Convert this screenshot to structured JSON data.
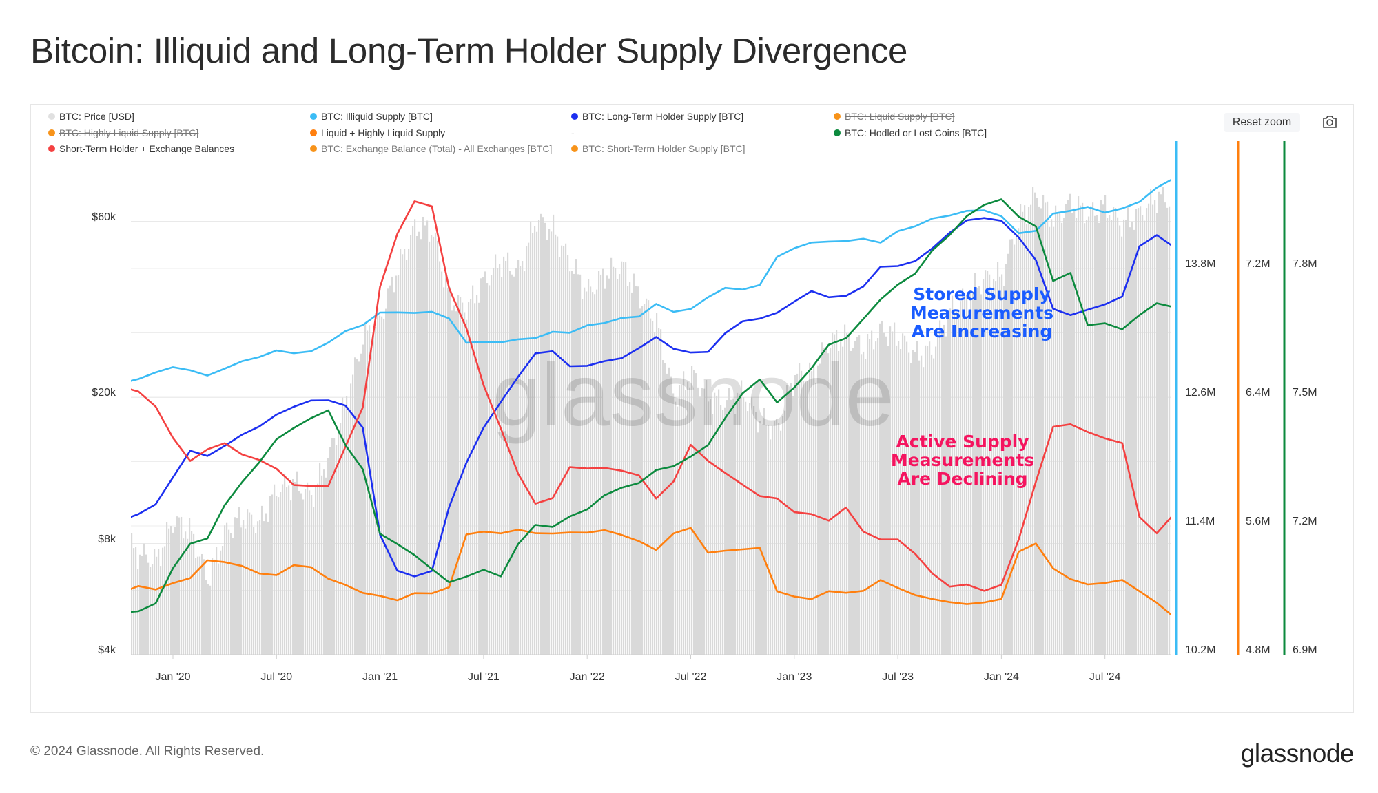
{
  "title": "Bitcoin: Illiquid and Long-Term Holder Supply Divergence",
  "controls": {
    "reset_zoom": "Reset zoom",
    "camera_icon": "camera-icon"
  },
  "legend": [
    {
      "label": "BTC: Price [USD]",
      "color": "#e0e0e0",
      "active": true
    },
    {
      "label": "BTC: Illiquid Supply [BTC]",
      "color": "#3bbcf5",
      "active": true
    },
    {
      "label": "BTC: Long-Term Holder Supply [BTC]",
      "color": "#1c2ff0",
      "active": true
    },
    {
      "label": "BTC: Liquid Supply [BTC]",
      "color": "#f7931a",
      "active": false
    },
    {
      "label": "BTC: Highly Liquid Supply [BTC]",
      "color": "#f7931a",
      "active": false
    },
    {
      "label": "Liquid + Highly Liquid Supply",
      "color": "#ff7f0e",
      "active": true
    },
    {
      "label": "-",
      "color": "",
      "active": true
    },
    {
      "label": "BTC: Hodled or Lost Coins [BTC]",
      "color": "#0c8a3e",
      "active": true
    },
    {
      "label": "Short-Term Holder + Exchange Balances",
      "color": "#f44141",
      "active": true
    },
    {
      "label": "BTC: Exchange Balance (Total) - All Exchanges [BTC]",
      "color": "#f7931a",
      "active": false
    },
    {
      "label": "BTC: Short-Term Holder Supply [BTC]",
      "color": "#f7931a",
      "active": false
    }
  ],
  "annotations": {
    "stored": [
      "Stored Supply",
      "Measurements",
      "Are Increasing"
    ],
    "active": [
      "Active Supply",
      "Measurements",
      "Are Declining"
    ]
  },
  "watermark": "glassnode",
  "footer": {
    "copyright": "© 2024 Glassnode. All Rights Reserved.",
    "logo": "glassnode"
  },
  "chart_data": {
    "type": "line",
    "title": "Bitcoin: Illiquid and Long-Term Holder Supply Divergence",
    "x": [
      "2019-10",
      "2019-11",
      "2019-12",
      "2020-01",
      "2020-02",
      "2020-03",
      "2020-04",
      "2020-05",
      "2020-06",
      "2020-07",
      "2020-08",
      "2020-09",
      "2020-10",
      "2020-11",
      "2020-12",
      "2021-01",
      "2021-02",
      "2021-03",
      "2021-04",
      "2021-05",
      "2021-06",
      "2021-07",
      "2021-08",
      "2021-09",
      "2021-10",
      "2021-11",
      "2021-12",
      "2022-01",
      "2022-02",
      "2022-03",
      "2022-04",
      "2022-05",
      "2022-06",
      "2022-07",
      "2022-08",
      "2022-09",
      "2022-10",
      "2022-11",
      "2022-12",
      "2023-01",
      "2023-02",
      "2023-03",
      "2023-04",
      "2023-05",
      "2023-06",
      "2023-07",
      "2023-08",
      "2023-09",
      "2023-10",
      "2023-11",
      "2023-12",
      "2024-01",
      "2024-02",
      "2024-03",
      "2024-04",
      "2024-05",
      "2024-06",
      "2024-07",
      "2024-08",
      "2024-09",
      "2024-10",
      "2024-11"
    ],
    "x_ticks": [
      {
        "date": "2020-01",
        "label": "Jan '20"
      },
      {
        "date": "2020-07",
        "label": "Jul '20"
      },
      {
        "date": "2021-01",
        "label": "Jan '21"
      },
      {
        "date": "2021-07",
        "label": "Jul '21"
      },
      {
        "date": "2022-01",
        "label": "Jan '22"
      },
      {
        "date": "2022-07",
        "label": "Jul '22"
      },
      {
        "date": "2023-01",
        "label": "Jan '23"
      },
      {
        "date": "2023-07",
        "label": "Jul '23"
      },
      {
        "date": "2024-01",
        "label": "Jan '24"
      },
      {
        "date": "2024-07",
        "label": "Jul '24"
      }
    ],
    "axes": {
      "price": {
        "scale": "log",
        "range": [
          4000,
          77600
        ],
        "ticks": [
          {
            "v": 4000,
            "label": "$4k"
          },
          {
            "v": 8000,
            "label": "$8k"
          },
          {
            "v": 20000,
            "label": "$20k"
          },
          {
            "v": 60000,
            "label": "$60k"
          }
        ],
        "side": "left"
      },
      "supply": {
        "scale": "linear",
        "range": [
          10.2,
          14.6
        ],
        "unit": "M",
        "color": "#3bbcf5",
        "ticks": [
          {
            "v": 10.2,
            "label": "10.2M"
          },
          {
            "v": 11.4,
            "label": "11.4M"
          },
          {
            "v": 12.6,
            "label": "12.6M"
          },
          {
            "v": 13.8,
            "label": "13.8M"
          }
        ],
        "side": "right"
      },
      "liquid": {
        "scale": "linear",
        "range": [
          4.8,
          7.74
        ],
        "unit": "M",
        "color": "#ff7f0e",
        "ticks": [
          {
            "v": 4.8,
            "label": "4.8M"
          },
          {
            "v": 5.6,
            "label": "5.6M"
          },
          {
            "v": 6.4,
            "label": "6.4M"
          },
          {
            "v": 7.2,
            "label": "7.2M"
          }
        ],
        "side": "right"
      },
      "hodled": {
        "scale": "linear",
        "range": [
          6.9,
          8.0
        ],
        "unit": "M",
        "color": "#0c8a3e",
        "ticks": [
          {
            "v": 6.9,
            "label": "6.9M"
          },
          {
            "v": 7.2,
            "label": "7.2M"
          },
          {
            "v": 7.5,
            "label": "7.5M"
          },
          {
            "v": 7.8,
            "label": "7.8M"
          }
        ],
        "side": "right"
      }
    },
    "grid": true,
    "legend_placement": "top",
    "series": [
      {
        "name": "BTC: Price [USD]",
        "type": "bar",
        "axis": "price",
        "color": "#d9d9d9",
        "values": [
          8300,
          7500,
          7200,
          9300,
          8600,
          6400,
          8600,
          9500,
          9100,
          11300,
          11700,
          10800,
          13800,
          19700,
          29000,
          33000,
          45000,
          58000,
          57000,
          37000,
          35000,
          41500,
          47000,
          43800,
          61000,
          57000,
          46300,
          38500,
          43200,
          45500,
          37700,
          31800,
          19900,
          23300,
          20000,
          19400,
          20500,
          17200,
          16500,
          23100,
          23100,
          28500,
          29200,
          27200,
          30500,
          29200,
          26000,
          27000,
          34500,
          37700,
          42300,
          42600,
          61200,
          71300,
          60600,
          67500,
          62700,
          66000,
          59000,
          63300,
          70200,
          68000
        ]
      },
      {
        "name": "BTC: Illiquid Supply [BTC]",
        "axis": "supply",
        "color": "#3bbcf5",
        "values": [
          12.74,
          12.76,
          12.84,
          12.87,
          12.86,
          12.8,
          12.87,
          12.93,
          12.98,
          13.03,
          13.01,
          13.03,
          13.11,
          13.21,
          13.28,
          13.38,
          13.4,
          13.38,
          13.4,
          13.34,
          13.11,
          13.11,
          13.12,
          13.13,
          13.16,
          13.2,
          13.21,
          13.26,
          13.3,
          13.33,
          13.36,
          13.46,
          13.4,
          13.42,
          13.54,
          13.61,
          13.61,
          13.64,
          13.91,
          13.99,
          14.04,
          14.05,
          14.06,
          14.07,
          14.05,
          14.14,
          14.2,
          14.26,
          14.3,
          14.33,
          14.35,
          14.28,
          14.12,
          14.16,
          14.31,
          14.34,
          14.37,
          14.33,
          14.35,
          14.43,
          14.55,
          14.64
        ]
      },
      {
        "name": "BTC: Long-Term Holder Supply [BTC]",
        "axis": "supply",
        "color": "#1c2ff0",
        "values": [
          11.46,
          11.5,
          11.61,
          11.86,
          12.1,
          12.06,
          12.14,
          12.25,
          12.33,
          12.43,
          12.52,
          12.56,
          12.58,
          12.52,
          12.31,
          11.32,
          10.99,
          10.92,
          10.99,
          11.57,
          11.98,
          12.31,
          12.56,
          12.8,
          13.01,
          13.03,
          12.88,
          12.9,
          12.93,
          12.97,
          13.05,
          13.17,
          13.05,
          13.01,
          13.03,
          13.2,
          13.3,
          13.34,
          13.38,
          13.5,
          13.58,
          13.54,
          13.54,
          13.64,
          13.81,
          13.83,
          13.86,
          13.99,
          14.14,
          14.24,
          14.28,
          14.24,
          14.08,
          13.87,
          13.42,
          13.36,
          13.42,
          13.46,
          13.54,
          14.0,
          14.12,
          14.0
        ]
      },
      {
        "name": "Liquid + Highly Liquid Supply",
        "axis": "liquid",
        "color": "#ff7f0e",
        "values": [
          5.19,
          5.22,
          5.21,
          5.24,
          5.28,
          5.38,
          5.38,
          5.35,
          5.3,
          5.3,
          5.35,
          5.35,
          5.27,
          5.23,
          5.19,
          5.16,
          5.14,
          5.18,
          5.18,
          5.22,
          5.55,
          5.56,
          5.56,
          5.57,
          5.56,
          5.55,
          5.56,
          5.56,
          5.57,
          5.55,
          5.5,
          5.45,
          5.55,
          5.59,
          5.44,
          5.44,
          5.46,
          5.46,
          5.19,
          5.16,
          5.15,
          5.19,
          5.19,
          5.19,
          5.27,
          5.21,
          5.17,
          5.15,
          5.12,
          5.12,
          5.12,
          5.15,
          5.44,
          5.49,
          5.33,
          5.27,
          5.24,
          5.24,
          5.27,
          5.19,
          5.12,
          5.04
        ]
      },
      {
        "name": "Short-Term Holder + Exchange Balances",
        "axis": "liquid",
        "color": "#f44141",
        "values": [
          6.47,
          6.43,
          6.34,
          6.15,
          6.01,
          6.07,
          6.12,
          6.04,
          6.01,
          5.96,
          5.85,
          5.85,
          5.85,
          6.1,
          6.34,
          7.08,
          7.41,
          7.62,
          7.58,
          7.08,
          6.83,
          6.48,
          6.21,
          5.93,
          5.74,
          5.77,
          5.96,
          5.96,
          5.96,
          5.94,
          5.92,
          5.77,
          5.88,
          6.1,
          6.01,
          5.93,
          5.85,
          5.79,
          5.77,
          5.68,
          5.68,
          5.63,
          5.72,
          5.57,
          5.51,
          5.52,
          5.43,
          5.3,
          5.22,
          5.24,
          5.19,
          5.24,
          5.52,
          5.88,
          6.22,
          6.23,
          6.18,
          6.15,
          6.11,
          5.66,
          5.55,
          5.68
        ]
      },
      {
        "name": "BTC: Hodled or Lost Coins [BTC]",
        "axis": "hodled",
        "color": "#0c8a3e",
        "values": [
          7.0,
          7.0,
          7.02,
          7.1,
          7.16,
          7.17,
          7.25,
          7.3,
          7.35,
          7.4,
          7.43,
          7.45,
          7.47,
          7.39,
          7.33,
          7.18,
          7.16,
          7.13,
          7.1,
          7.07,
          7.08,
          7.1,
          7.08,
          7.16,
          7.2,
          7.2,
          7.22,
          7.24,
          7.27,
          7.29,
          7.3,
          7.33,
          7.34,
          7.36,
          7.39,
          7.45,
          7.51,
          7.54,
          7.49,
          7.52,
          7.57,
          7.62,
          7.64,
          7.68,
          7.73,
          7.76,
          7.79,
          7.84,
          7.88,
          7.92,
          7.95,
          7.96,
          7.92,
          7.9,
          7.77,
          7.79,
          7.67,
          7.67,
          7.66,
          7.69,
          7.72,
          7.71
        ]
      }
    ]
  }
}
